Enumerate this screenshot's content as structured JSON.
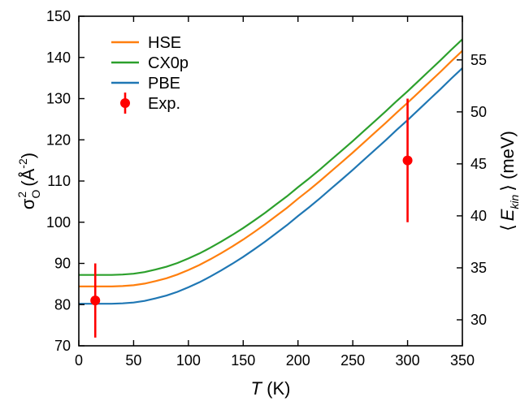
{
  "chart_data": {
    "type": "line",
    "xlabel_var": "T",
    "xlabel_unit": " (K)",
    "ylabel_sigma": "σ",
    "ylabel_sup": "2",
    "ylabel_sub": "O",
    "ylabel_rest": " (Å",
    "ylabel_exp": "-2",
    "ylabel_close": ")",
    "y2label_left": "⟨",
    "y2label_var": "E",
    "y2label_sub": "kin",
    "y2label_right": "⟩ (meV)",
    "xlim": [
      0,
      350
    ],
    "ylim": [
      70,
      150
    ],
    "y2lim": [
      27.5,
      59.2
    ],
    "xticks": [
      "0",
      "50",
      "100",
      "150",
      "200",
      "250",
      "300",
      "350"
    ],
    "yticks": [
      "70",
      "80",
      "90",
      "100",
      "110",
      "120",
      "130",
      "140",
      "150"
    ],
    "y2ticks": [
      "30",
      "35",
      "40",
      "45",
      "50",
      "55"
    ],
    "x": [
      0,
      10,
      20,
      30,
      40,
      50,
      60,
      70,
      80,
      90,
      100,
      110,
      120,
      130,
      140,
      150,
      160,
      170,
      180,
      190,
      200,
      210,
      220,
      230,
      240,
      250,
      260,
      270,
      280,
      290,
      300,
      310,
      320,
      330,
      340,
      350
    ],
    "series": [
      {
        "name": "HSE",
        "color": "#ff7f0e",
        "values": [
          84.4,
          84.4,
          84.4,
          84.4,
          84.5,
          84.7,
          85.1,
          85.7,
          86.4,
          87.3,
          88.4,
          89.6,
          91.0,
          92.5,
          94.1,
          95.8,
          97.6,
          99.5,
          101.5,
          103.5,
          105.7,
          107.8,
          110.0,
          112.3,
          114.6,
          116.9,
          119.3,
          121.7,
          124.1,
          126.6,
          129.0,
          131.5,
          134.0,
          136.5,
          139.1,
          141.6
        ]
      },
      {
        "name": "CX0p",
        "color": "#2ca02c",
        "values": [
          87.2,
          87.2,
          87.2,
          87.2,
          87.3,
          87.5,
          87.9,
          88.5,
          89.2,
          90.1,
          91.2,
          92.4,
          93.8,
          95.3,
          96.9,
          98.6,
          100.4,
          102.3,
          104.3,
          106.3,
          108.5,
          110.6,
          112.8,
          115.1,
          117.4,
          119.7,
          122.1,
          124.5,
          126.9,
          129.4,
          131.8,
          134.3,
          136.8,
          139.3,
          141.9,
          144.4
        ]
      },
      {
        "name": "PBE",
        "color": "#1f77b4",
        "values": [
          80.2,
          80.2,
          80.2,
          80.2,
          80.3,
          80.5,
          80.9,
          81.5,
          82.2,
          83.1,
          84.2,
          85.4,
          86.8,
          88.3,
          89.9,
          91.6,
          93.4,
          95.3,
          97.3,
          99.3,
          101.5,
          103.6,
          105.8,
          108.1,
          110.4,
          112.7,
          115.1,
          117.5,
          119.9,
          122.4,
          124.8,
          127.3,
          129.8,
          132.3,
          134.9,
          137.4
        ]
      }
    ],
    "experiment": {
      "name": "Exp.",
      "color": "#ff0000",
      "points": [
        {
          "x": 15,
          "y": 81,
          "ylow": 72,
          "yhigh": 90
        },
        {
          "x": 300,
          "y": 115,
          "ylow": 100,
          "yhigh": 130
        }
      ]
    },
    "legend_position": "top-left",
    "grid": false
  }
}
